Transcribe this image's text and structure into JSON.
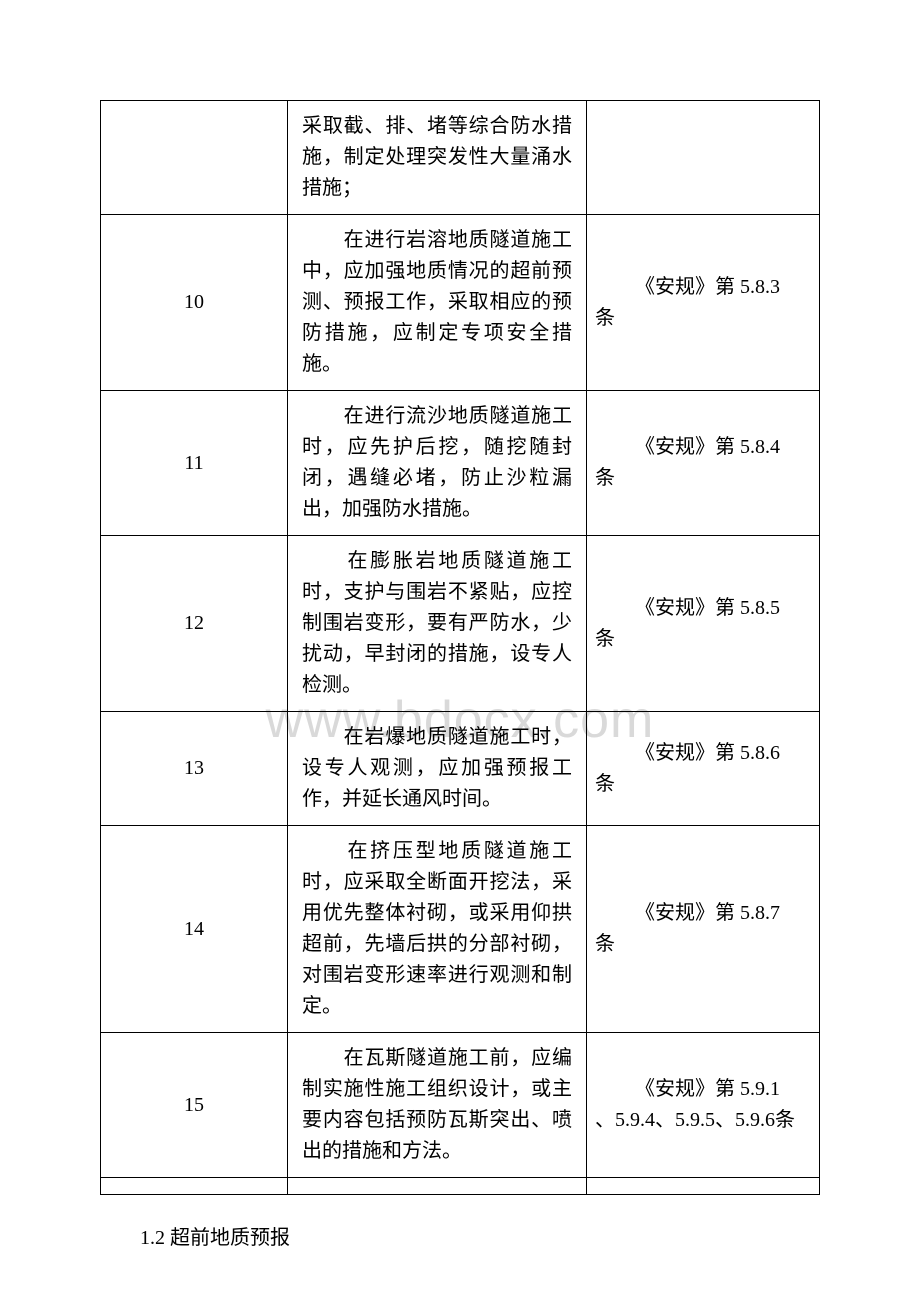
{
  "watermark": "www.bdocx.com",
  "table": {
    "border_color": "#000000",
    "background_color": "#ffffff",
    "text_color": "#000000",
    "font_size_pt": 15,
    "rows": [
      {
        "num": "",
        "desc": "采取截、排、堵等综合防水措施，制定处理突发性大量涌水措施；",
        "ref_l1": "",
        "ref_l2": ""
      },
      {
        "num": "10",
        "desc": "　　在进行岩溶地质隧道施工中，应加强地质情况的超前预测、预报工作，采取相应的预防措施，应制定专项安全措施。",
        "ref_l1": "《安规》第 5.8.3",
        "ref_l2": "条"
      },
      {
        "num": "11",
        "desc": "　　在进行流沙地质隧道施工时，应先护后挖，随挖随封闭，遇缝必堵，防止沙粒漏出，加强防水措施。",
        "ref_l1": "《安规》第 5.8.4",
        "ref_l2": "条"
      },
      {
        "num": "12",
        "desc": "　　在膨胀岩地质隧道施工时，支护与围岩不紧贴，应控制围岩变形，要有严防水，少扰动，早封闭的措施，设专人检测。",
        "ref_l1": "《安规》第 5.8.5",
        "ref_l2": "条"
      },
      {
        "num": "13",
        "desc": "　　在岩爆地质隧道施工时，设专人观测，应加强预报工作，并延长通风时间。",
        "ref_l1": "《安规》第 5.8.6",
        "ref_l2": "条"
      },
      {
        "num": "14",
        "desc": "　　在挤压型地质隧道施工时，应采取全断面开挖法，采用优先整体衬砌，或采用仰拱超前，先墙后拱的分部衬砌，对围岩变形速率进行观测和制定。",
        "ref_l1": "《安规》第 5.8.7",
        "ref_l2": "条"
      },
      {
        "num": "15",
        "desc": "　　在瓦斯隧道施工前，应编制实施性施工组织设计，或主要内容包括预防瓦斯突出、喷出的措施和方法。",
        "ref_l1": "《安规》第 5.9.1",
        "ref_l2": "、5.9.4、5.9.5、5.9.6条"
      }
    ]
  },
  "footer": "1.2 超前地质预报"
}
